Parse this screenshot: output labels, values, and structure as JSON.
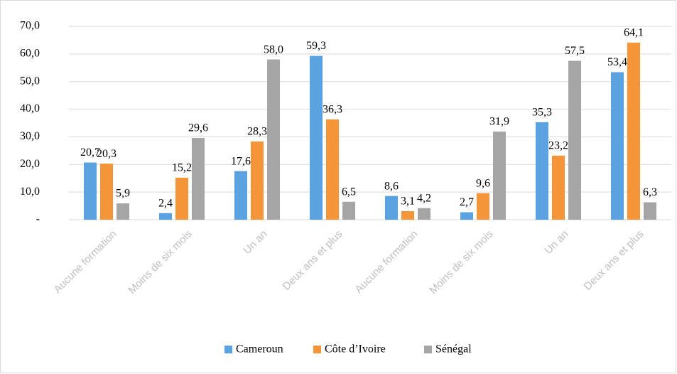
{
  "chart_data": {
    "type": "bar",
    "categories": [
      "Aucune formation",
      "Moins de six mois",
      "Un an",
      "Deux ans et plus",
      "Aucune formation",
      "Moins de six mois",
      "Un an",
      "Deux ans et plus"
    ],
    "series": [
      {
        "name": "Cameroun",
        "color": "#5ba3e0",
        "values": [
          20.7,
          2.4,
          17.6,
          59.3,
          8.6,
          2.7,
          35.3,
          53.4
        ],
        "value_labels": [
          "20,7",
          "2,4",
          "17,6",
          "59,3",
          "8,6",
          "2,7",
          "35,3",
          "53,4"
        ]
      },
      {
        "name": "Côte d’Ivoire",
        "color": "#f5953a",
        "values": [
          20.3,
          15.2,
          28.3,
          36.3,
          3.1,
          9.6,
          23.2,
          64.1
        ],
        "value_labels": [
          "20,3",
          "15,2",
          "28,3",
          "36,3",
          "3,1",
          "9,6",
          "23,2",
          "64,1"
        ]
      },
      {
        "name": "Sénégal",
        "color": "#a5a5a5",
        "values": [
          5.9,
          29.6,
          58.0,
          6.5,
          4.2,
          31.9,
          57.5,
          6.3
        ],
        "value_labels": [
          "5,9",
          "29,6",
          "58,0",
          "6,5",
          "4,2",
          "31,9",
          "57,5",
          "6,3"
        ]
      }
    ],
    "ylim": [
      0,
      70
    ],
    "yticks": [
      {
        "value": 0,
        "label": "-"
      },
      {
        "value": 10,
        "label": "10,0"
      },
      {
        "value": 20,
        "label": "20,0"
      },
      {
        "value": 30,
        "label": "30,0"
      },
      {
        "value": 40,
        "label": "40,0"
      },
      {
        "value": 50,
        "label": "50,0"
      },
      {
        "value": 60,
        "label": "60,0"
      },
      {
        "value": 70,
        "label": "70,0"
      }
    ],
    "grid": true,
    "legend": "bottom"
  }
}
